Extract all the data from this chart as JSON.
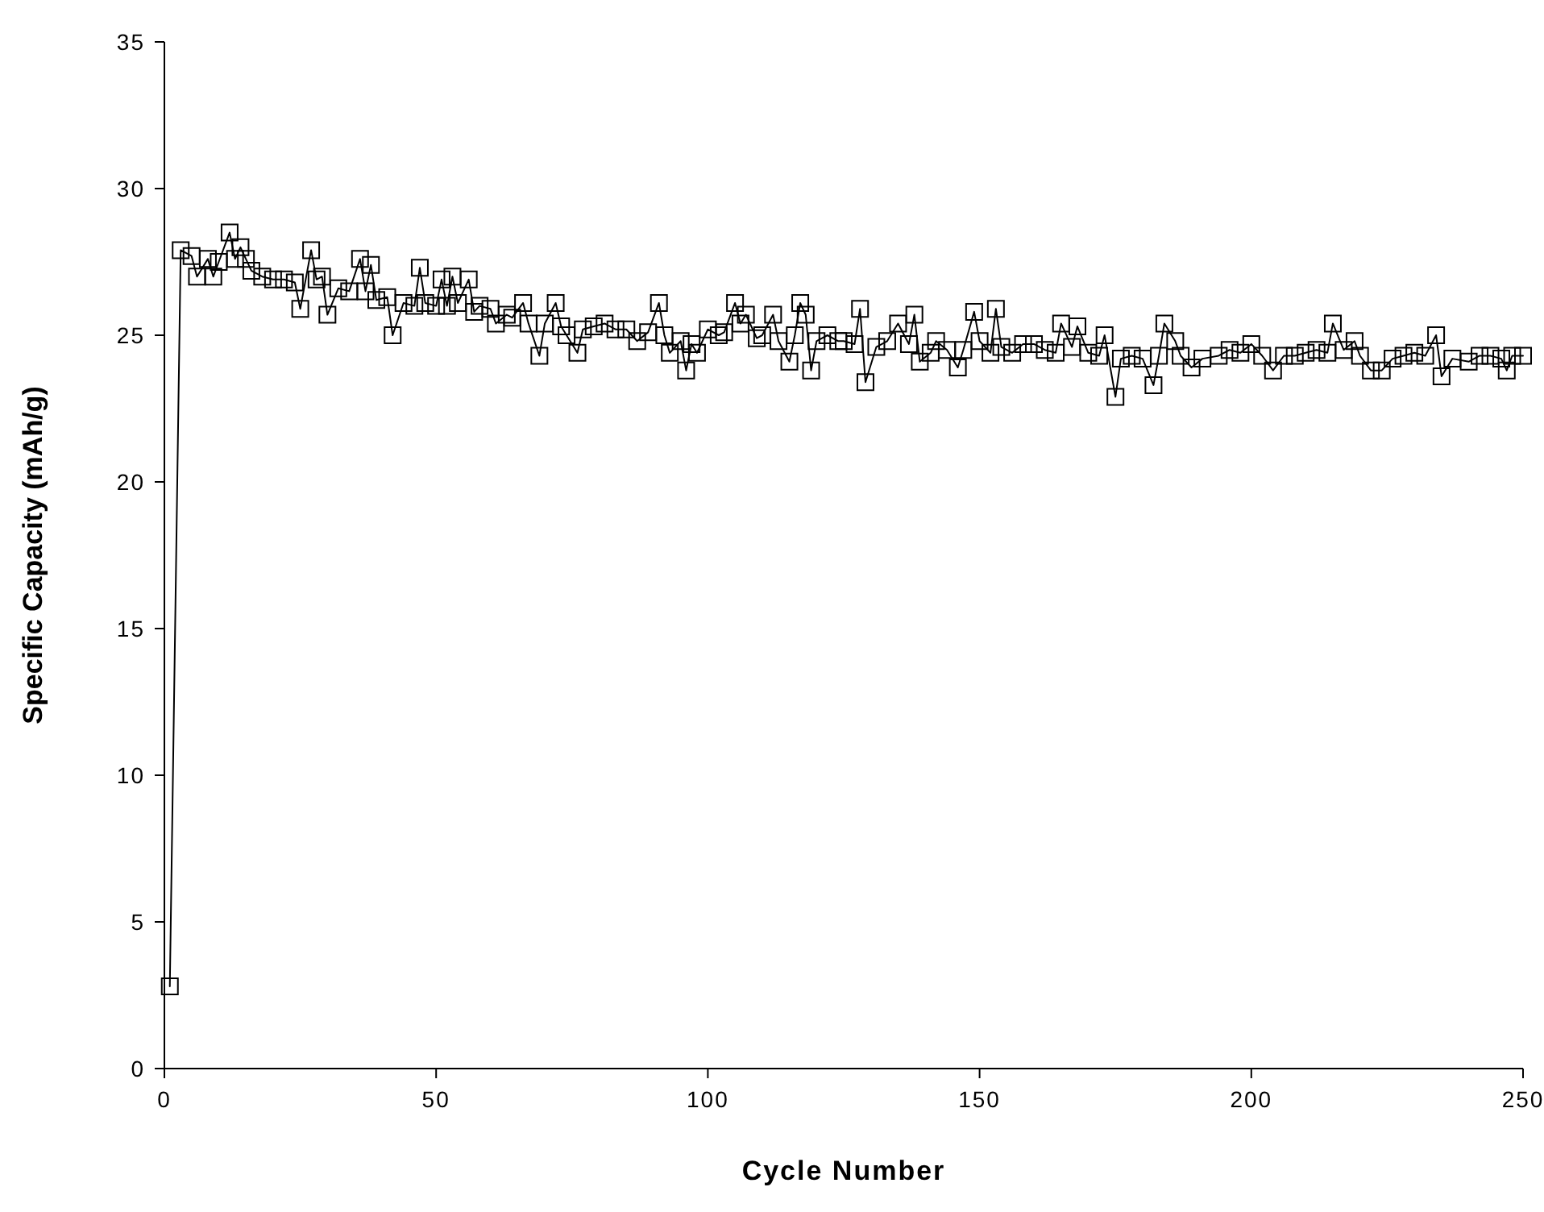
{
  "chart_data": {
    "type": "line",
    "xlabel": "Cycle Number",
    "ylabel": "Specific Capacity (mAh/g)",
    "xlim": [
      0,
      250
    ],
    "xticks": [
      0,
      50,
      100,
      150,
      200,
      250
    ],
    "ylim": [
      0,
      35
    ],
    "yticks": [
      0,
      5,
      10,
      15,
      20,
      25,
      30,
      35
    ],
    "grid": false,
    "marker": "square",
    "line_style": "solid",
    "series": [
      {
        "color": "#000000",
        "x": [
          1,
          3,
          5,
          6,
          8,
          9,
          10,
          12,
          13,
          14,
          15,
          16,
          18,
          20,
          22,
          24,
          25,
          27,
          28,
          29,
          30,
          32,
          34,
          36,
          37,
          38,
          39,
          41,
          42,
          44,
          46,
          47,
          48,
          50,
          51,
          52,
          53,
          54,
          56,
          57,
          58,
          60,
          61,
          63,
          64,
          66,
          67,
          69,
          70,
          72,
          73,
          74,
          76,
          77,
          79,
          81,
          83,
          85,
          87,
          89,
          91,
          92,
          93,
          95,
          96,
          97,
          98,
          100,
          102,
          103,
          105,
          106,
          107,
          109,
          110,
          112,
          113,
          115,
          116,
          117,
          118,
          119,
          120,
          122,
          124,
          125,
          127,
          128,
          129,
          131,
          133,
          135,
          137,
          138,
          139,
          141,
          142,
          144,
          146,
          147,
          149,
          150,
          152,
          153,
          154,
          156,
          158,
          160,
          162,
          164,
          165,
          167,
          168,
          170,
          172,
          173,
          175,
          176,
          178,
          180,
          182,
          183,
          184,
          186,
          187,
          189,
          191,
          194,
          196,
          198,
          200,
          202,
          204,
          206,
          208,
          210,
          212,
          214,
          215,
          217,
          219,
          220,
          222,
          224,
          226,
          228,
          230,
          232,
          234,
          235,
          237,
          240,
          242,
          244,
          246,
          247,
          248,
          250
        ],
        "values": [
          2.8,
          27.9,
          27.7,
          27.0,
          27.6,
          27.0,
          27.5,
          28.5,
          27.6,
          28.0,
          27.6,
          27.2,
          27.0,
          26.9,
          26.9,
          26.8,
          25.9,
          27.9,
          26.9,
          27.0,
          25.7,
          26.6,
          26.5,
          27.6,
          26.5,
          27.4,
          26.2,
          26.3,
          25.0,
          26.1,
          26.0,
          27.3,
          26.1,
          26.0,
          26.9,
          26.0,
          27.0,
          26.1,
          26.9,
          25.8,
          26.0,
          25.9,
          25.4,
          25.7,
          25.6,
          26.1,
          25.4,
          24.3,
          25.4,
          26.1,
          25.3,
          25.0,
          24.4,
          25.2,
          25.3,
          25.4,
          25.2,
          25.2,
          24.8,
          25.1,
          26.1,
          25.0,
          24.4,
          24.8,
          23.8,
          24.7,
          24.4,
          25.2,
          25.0,
          25.1,
          26.1,
          25.4,
          25.7,
          24.9,
          25.0,
          25.7,
          24.8,
          24.1,
          25.0,
          26.1,
          25.7,
          23.8,
          24.8,
          25.0,
          24.8,
          24.8,
          24.7,
          25.9,
          23.4,
          24.6,
          24.8,
          25.4,
          24.7,
          25.7,
          24.1,
          24.4,
          24.8,
          24.5,
          23.9,
          24.5,
          25.8,
          24.8,
          24.4,
          25.9,
          24.6,
          24.4,
          24.7,
          24.7,
          24.5,
          24.4,
          25.4,
          24.6,
          25.3,
          24.4,
          24.3,
          25.0,
          22.9,
          24.2,
          24.3,
          24.2,
          23.3,
          24.3,
          25.4,
          24.8,
          24.3,
          23.9,
          24.2,
          24.3,
          24.5,
          24.4,
          24.7,
          24.3,
          23.8,
          24.3,
          24.3,
          24.4,
          24.5,
          24.4,
          25.4,
          24.5,
          24.8,
          24.3,
          23.8,
          23.8,
          24.2,
          24.3,
          24.4,
          24.3,
          25.0,
          23.6,
          24.2,
          24.1,
          24.3,
          24.3,
          24.2,
          23.8,
          24.3,
          24.3
        ]
      }
    ]
  }
}
